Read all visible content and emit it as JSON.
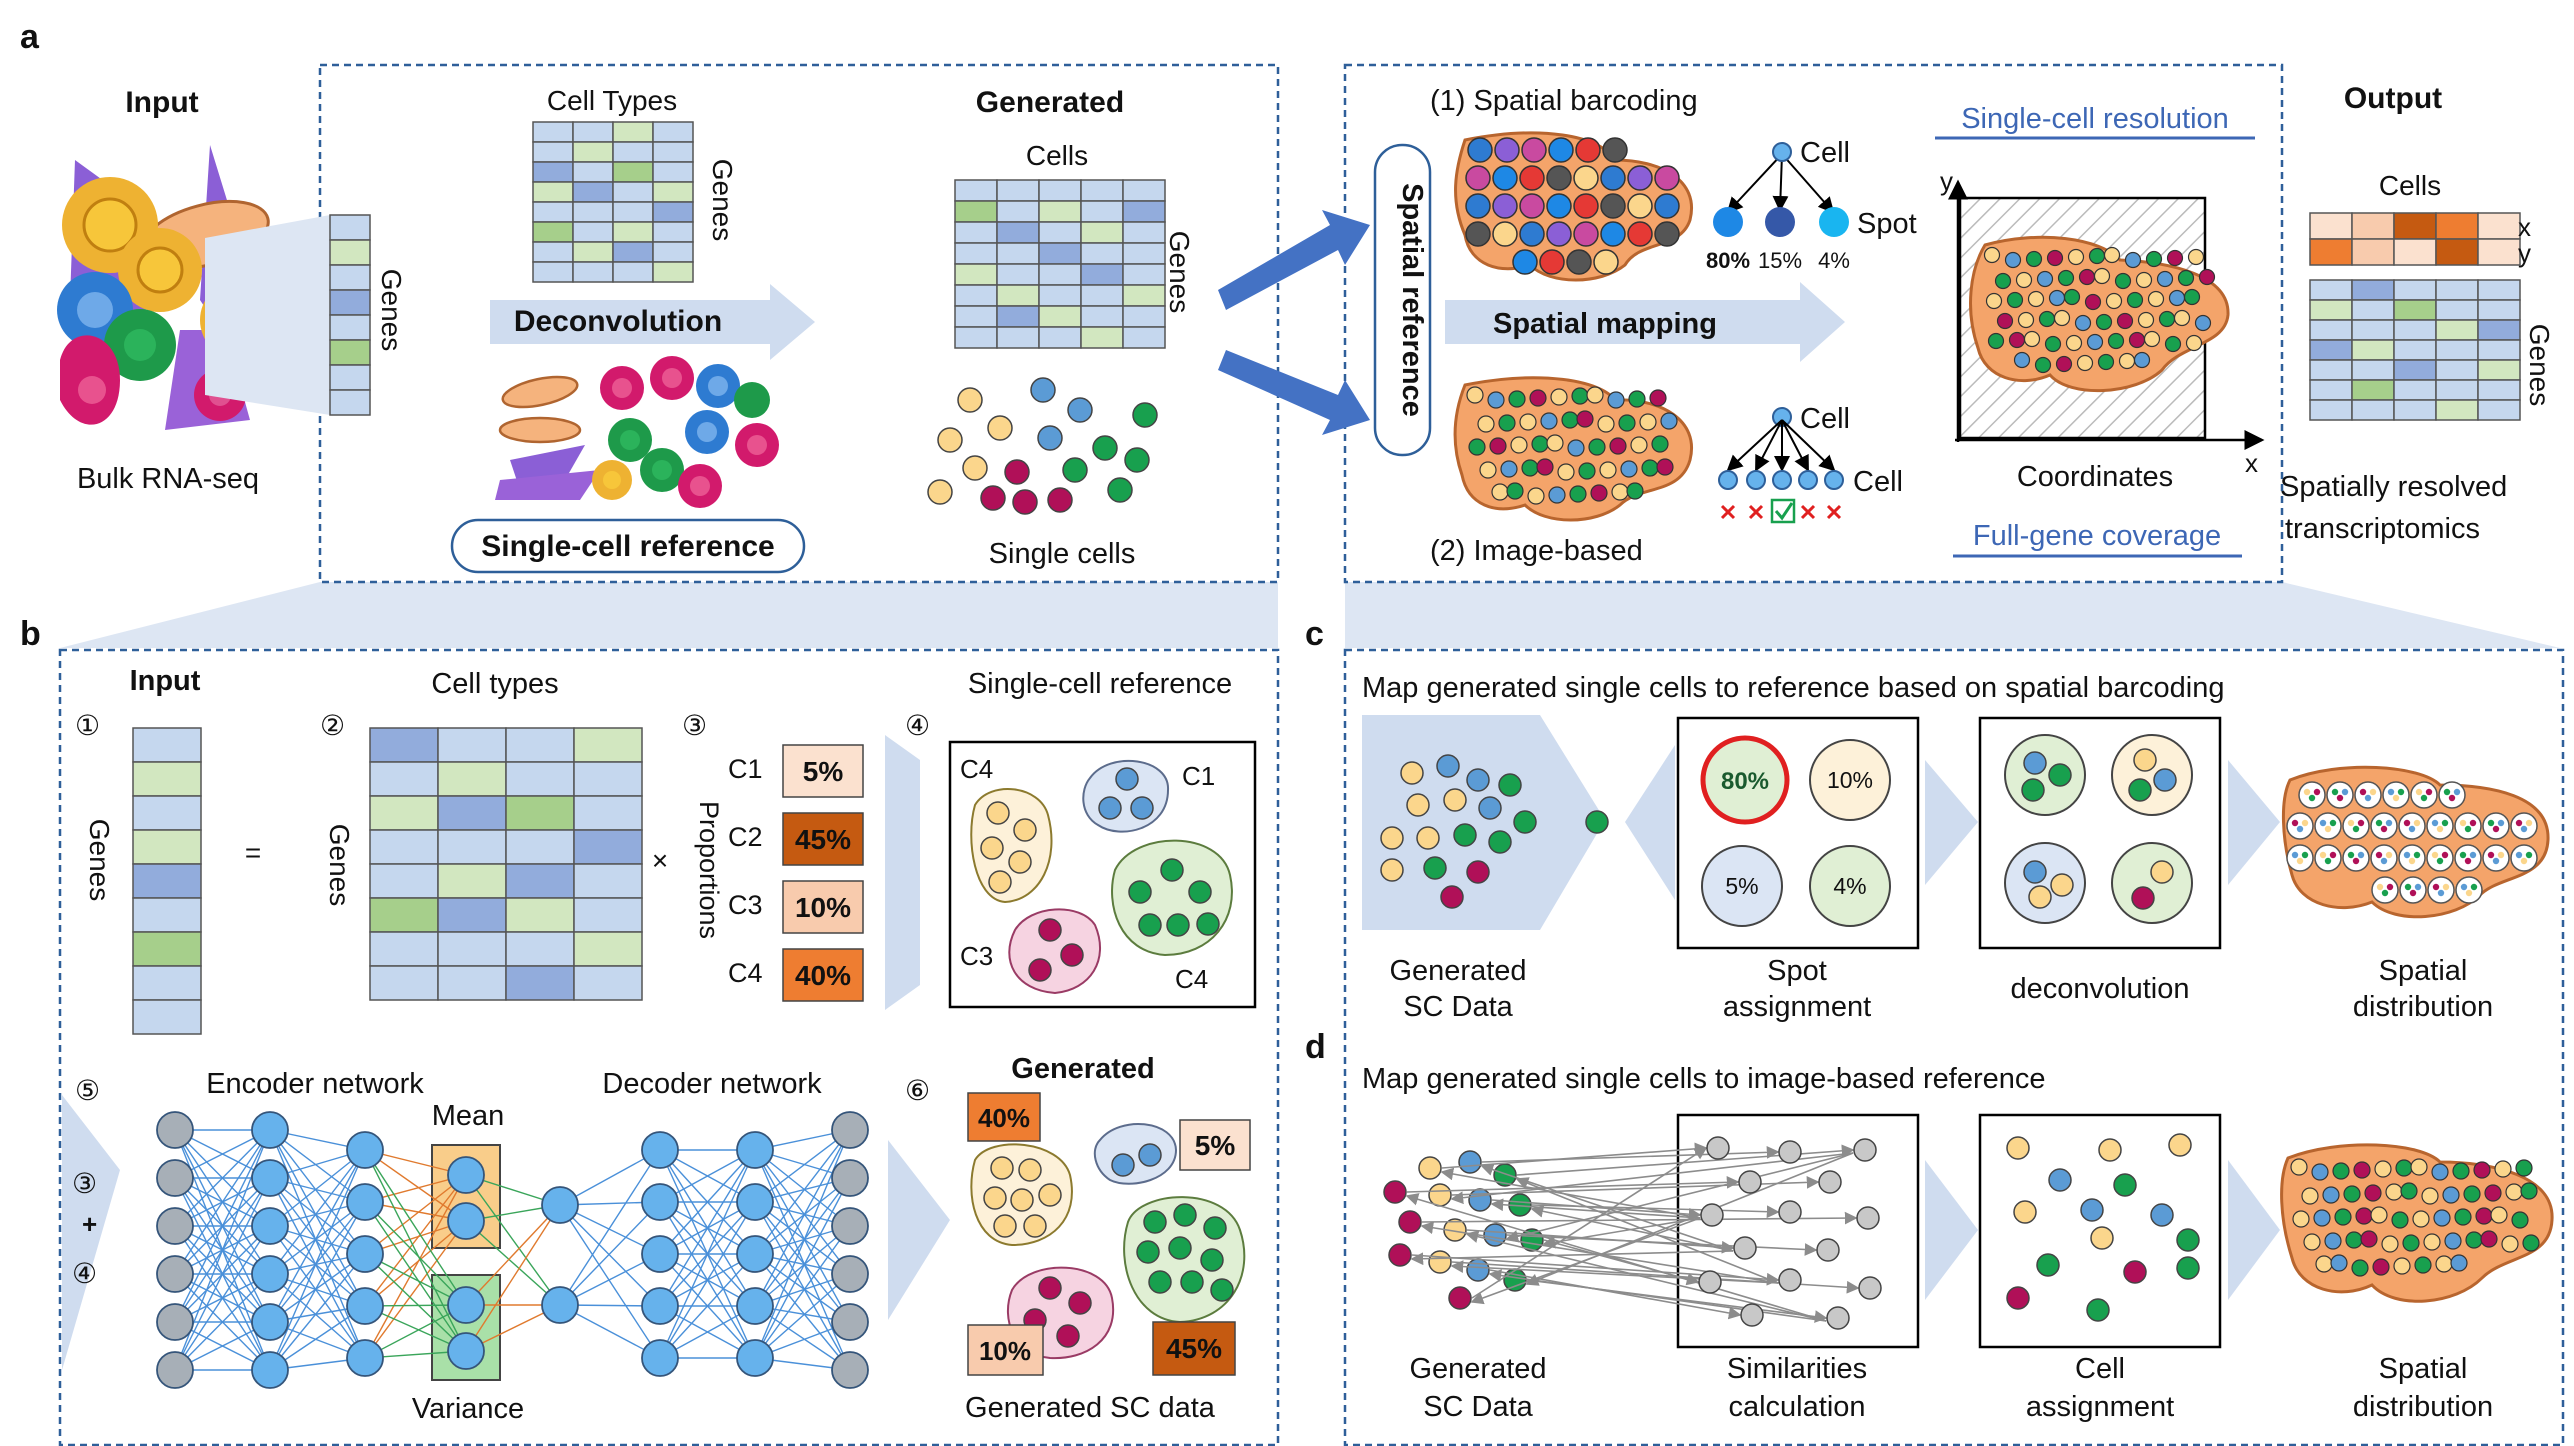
{
  "colors": {
    "tissue": "#f4a46a",
    "tissue_edge": "#b8652e",
    "blue_light": "#c5d7ee",
    "blue_mid": "#92acdc",
    "green_light": "#d2e7c0",
    "green_mid": "#a6cf8b",
    "cell_yellow": "#fbd68c",
    "cell_blue": "#5b9bd5",
    "cell_green": "#18a04e",
    "cell_crimson": "#b01058",
    "node_gray": "#a7afb7",
    "node_blue": "#66b2ec",
    "arrow_fill": "#cfdcef",
    "big_arrow": "#4472c4",
    "dash": "#2e5f99",
    "pct_5": "#fbe1cf",
    "pct_45": "#c55a11",
    "pct_10": "#f8cbad",
    "pct_40": "#ee7d31"
  },
  "icons": {
    "cell_cluster": "bulk-cell-cluster-icon",
    "check": "check-box-icon",
    "cross": "red-cross-icon"
  },
  "panel_letters": {
    "a": "a",
    "b": "b",
    "c": "c",
    "d": "d"
  },
  "panel_a": {
    "input_title": "Input",
    "genes_vertical": "Genes",
    "bulk_label": "Bulk RNA-seq",
    "cell_types_label": "Cell Types",
    "genes_label": "Genes",
    "deconvolution": "Deconvolution",
    "sc_reference": "Single-cell reference",
    "generated_title": "Generated",
    "cells_label": "Cells",
    "gen_genes_label": "Genes",
    "single_cells": "Single cells",
    "spatial_reference": "Spatial reference",
    "barcoding": "(1) Spatial barcoding",
    "cell_label": "Cell",
    "spot_label": "Spot",
    "pct_80": "80%",
    "pct_15": "15%",
    "pct_4": "4%",
    "spatial_mapping": "Spatial mapping",
    "image_based": "(2) Image-based",
    "cell_label_2": "Cell",
    "cell_label_3": "Cell",
    "single_cell_resolution": "Single-cell resolution",
    "y_axis": "y",
    "x_axis": "x",
    "coordinates": "Coordinates",
    "full_gene": "Full-gene coverage",
    "output_title": "Output",
    "out_cells": "Cells",
    "out_x": "x",
    "out_y": "y",
    "out_genes": "Genes",
    "srt_line1": "Spatially resolved",
    "srt_line2": "transcriptomics"
  },
  "panel_b": {
    "step1": "①",
    "step2": "②",
    "step3": "③",
    "step4": "④",
    "step5": "⑤",
    "step6": "⑥",
    "input_title": "Input",
    "genes_a": "Genes",
    "equals": "=",
    "cell_types": "Cell types",
    "genes_b": "Genes",
    "times": "×",
    "proportions": "Proportions",
    "proportion_rows": [
      {
        "type": "C1",
        "value": "5%"
      },
      {
        "type": "C2",
        "value": "45%"
      },
      {
        "type": "C3",
        "value": "10%"
      },
      {
        "type": "C4",
        "value": "40%"
      }
    ],
    "sc_reference": "Single-cell reference",
    "ref_c4": "C4",
    "ref_c1": "C1",
    "ref_c3": "C3",
    "ref_c4b": "C4",
    "encoder": "Encoder network",
    "decoder": "Decoder network",
    "mean": "Mean",
    "variance": "Variance",
    "side_3": "③",
    "side_plus": "+",
    "side_4": "④",
    "generated_title": "Generated",
    "gen_40": "40%",
    "gen_5": "5%",
    "gen_10": "10%",
    "gen_45": "45%",
    "generated_sc": "Generated SC data"
  },
  "panel_c": {
    "title": "Map generated single cells to reference based on spatial barcoding",
    "gen_line1": "Generated",
    "gen_line2": "SC Data",
    "spot_80": "80%",
    "spot_10": "10%",
    "spot_5": "5%",
    "spot_4": "4%",
    "spot_line1": "Spot",
    "spot_line2": "assignment",
    "deconvolution": "deconvolution",
    "dist_line1": "Spatial",
    "dist_line2": "distribution"
  },
  "panel_d": {
    "title": "Map generated single cells to image-based reference",
    "gen_line1": "Generated",
    "gen_line2": "SC Data",
    "sim_line1": "Similarities",
    "sim_line2": "calculation",
    "assign_line1": "Cell",
    "assign_line2": "assignment",
    "dist_line1": "Spatial",
    "dist_line2": "distribution"
  }
}
